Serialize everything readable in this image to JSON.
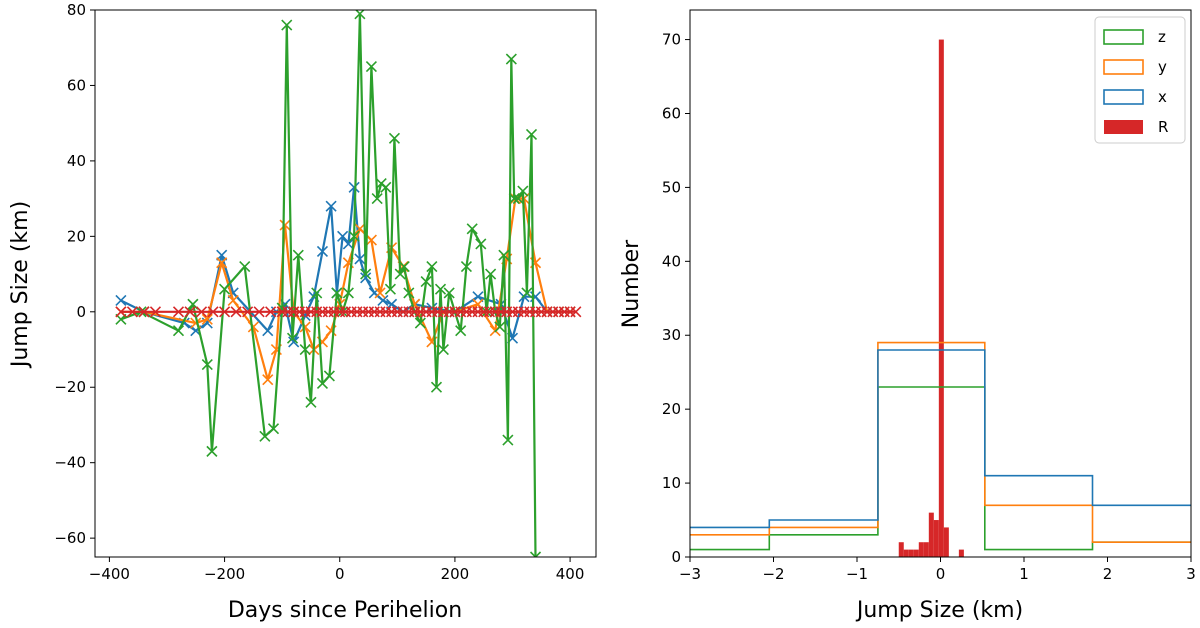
{
  "chart_data": [
    {
      "type": "line",
      "xlabel": "Days since Perihelion",
      "ylabel": "Jump Size (km)",
      "xlim": [
        -425,
        445
      ],
      "ylim": [
        -65,
        80
      ],
      "xticks": [
        -400,
        -200,
        0,
        200,
        400
      ],
      "xtick_labels": [
        "−400",
        "−200",
        "0",
        "200",
        "400"
      ],
      "yticks": [
        -60,
        -40,
        -20,
        0,
        20,
        40,
        60,
        80
      ],
      "ytick_labels": [
        "−60",
        "−40",
        "−20",
        "0",
        "20",
        "40",
        "60",
        "80"
      ],
      "marker": "x",
      "series": [
        {
          "name": "x",
          "color": "#1f77b4",
          "x": [
            -380,
            -340,
            -270,
            -250,
            -230,
            -205,
            -185,
            -125,
            -110,
            -95,
            -80,
            -60,
            -45,
            -30,
            -15,
            -5,
            5,
            15,
            25,
            35,
            45,
            60,
            75,
            90,
            110,
            130,
            160,
            200,
            240,
            280,
            300,
            320,
            340,
            360,
            380,
            400
          ],
          "y": [
            3,
            0,
            -3,
            -5,
            -3,
            15,
            5,
            -5,
            0,
            2,
            -8,
            -1,
            4,
            16,
            28,
            5,
            20,
            18,
            33,
            14,
            9,
            5,
            3,
            2,
            0,
            2,
            1,
            0,
            4,
            2,
            -7,
            4,
            4,
            0,
            0,
            0
          ]
        },
        {
          "name": "y",
          "color": "#ff7f0e",
          "x": [
            -380,
            -340,
            -250,
            -230,
            -205,
            -185,
            -150,
            -125,
            -110,
            -95,
            -80,
            -60,
            -45,
            -30,
            -15,
            0,
            15,
            35,
            55,
            70,
            90,
            110,
            130,
            160,
            180,
            200,
            240,
            270,
            290,
            305,
            320,
            340,
            360,
            380,
            400
          ],
          "y": [
            0,
            0,
            -3,
            -2,
            13,
            3,
            -4,
            -18,
            -10,
            23,
            0,
            -4,
            -10,
            -8,
            -5,
            2,
            13,
            22,
            19,
            5,
            17,
            12,
            2,
            -8,
            0,
            0,
            2,
            -5,
            14,
            30,
            30,
            13,
            0,
            0,
            0
          ]
        },
        {
          "name": "z",
          "color": "#2ca02c",
          "x": [
            -380,
            -345,
            -280,
            -255,
            -230,
            -222,
            -200,
            -165,
            -130,
            -115,
            -100,
            -92,
            -82,
            -72,
            -60,
            -50,
            -40,
            -30,
            -18,
            -5,
            5,
            15,
            25,
            35,
            45,
            55,
            65,
            72,
            80,
            88,
            95,
            105,
            112,
            120,
            130,
            140,
            150,
            160,
            168,
            175,
            180,
            190,
            200,
            210,
            220,
            230,
            245,
            255,
            262,
            270,
            278,
            285,
            292,
            298,
            303,
            310,
            318,
            325,
            333,
            340
          ],
          "y": [
            -2,
            0,
            -5,
            2,
            -14,
            -37,
            6,
            12,
            -33,
            -31,
            1,
            76,
            -7,
            15,
            -10,
            -24,
            5,
            -19,
            -17,
            5,
            0,
            5,
            20,
            79,
            10,
            65,
            30,
            34,
            33,
            6,
            46,
            10,
            12,
            5,
            0,
            -3,
            8,
            12,
            -20,
            6,
            -10,
            5,
            0,
            -5,
            12,
            22,
            18,
            0,
            10,
            0,
            -4,
            15,
            -34,
            67,
            30,
            30,
            32,
            5,
            47,
            -65
          ]
        },
        {
          "name": "R",
          "color": "#d62728",
          "x": [
            -380,
            -360,
            -340,
            -320,
            -280,
            -260,
            -240,
            -220,
            -200,
            -180,
            -160,
            -140,
            -120,
            -100,
            -90,
            -80,
            -70,
            -60,
            -50,
            -40,
            -30,
            -20,
            -10,
            0,
            10,
            20,
            30,
            40,
            50,
            60,
            70,
            80,
            90,
            100,
            110,
            120,
            130,
            140,
            150,
            160,
            170,
            180,
            190,
            200,
            210,
            220,
            230,
            240,
            250,
            260,
            270,
            280,
            290,
            300,
            310,
            320,
            330,
            340,
            350,
            360,
            370,
            380,
            390,
            400,
            410
          ],
          "y": [
            0,
            0,
            0,
            0,
            0,
            0,
            0,
            0,
            0,
            0,
            0,
            0,
            0,
            0,
            0,
            0,
            0,
            0,
            0,
            0,
            0,
            0,
            0,
            0,
            0,
            0,
            0,
            0,
            0,
            0,
            0,
            0,
            0,
            0,
            0,
            0,
            0,
            0,
            0,
            0,
            0,
            0,
            0,
            0,
            0,
            0,
            0,
            0,
            0,
            0,
            0,
            0,
            0,
            0,
            0,
            0,
            0,
            0,
            0,
            0,
            0,
            0,
            0,
            0,
            0
          ]
        }
      ]
    },
    {
      "type": "bar",
      "xlabel": "Jump Size (km)",
      "ylabel": "Number",
      "xlim": [
        -3,
        3
      ],
      "ylim": [
        0,
        74
      ],
      "xticks": [
        -3,
        -2,
        -1,
        0,
        1,
        2,
        3
      ],
      "xtick_labels": [
        "−3",
        "−2",
        "−1",
        "0",
        "1",
        "2",
        "3"
      ],
      "yticks": [
        0,
        10,
        20,
        30,
        40,
        50,
        60,
        70
      ],
      "ytick_labels": [
        "0",
        "10",
        "20",
        "30",
        "40",
        "50",
        "60",
        "70"
      ],
      "legend_position": "top-right",
      "legend": [
        "z",
        "y",
        "x",
        "R"
      ],
      "step_series": [
        {
          "name": "z",
          "color": "#2ca02c",
          "edges": [
            -3,
            -2.05,
            -0.75,
            0.53,
            1.82,
            3
          ],
          "counts": [
            1,
            3,
            23,
            1,
            2
          ]
        },
        {
          "name": "y",
          "color": "#ff7f0e",
          "edges": [
            -3,
            -2.05,
            -0.75,
            0.53,
            1.82,
            3
          ],
          "counts": [
            3,
            4,
            29,
            7,
            2
          ]
        },
        {
          "name": "x",
          "color": "#1f77b4",
          "edges": [
            -3,
            -2.05,
            -0.75,
            0.53,
            1.82,
            3
          ],
          "counts": [
            4,
            5,
            28,
            11,
            7
          ]
        }
      ],
      "bar_series": {
        "name": "R",
        "color": "#d62728",
        "edges": [
          -0.5,
          -0.44,
          -0.38,
          -0.32,
          -0.26,
          -0.2,
          -0.14,
          -0.08,
          -0.02,
          0.04,
          0.1,
          0.16,
          0.22,
          0.28,
          0.34
        ],
        "counts": [
          2,
          1,
          1,
          1,
          2,
          2,
          6,
          5,
          70,
          4,
          0,
          0,
          1,
          0
        ]
      }
    }
  ]
}
